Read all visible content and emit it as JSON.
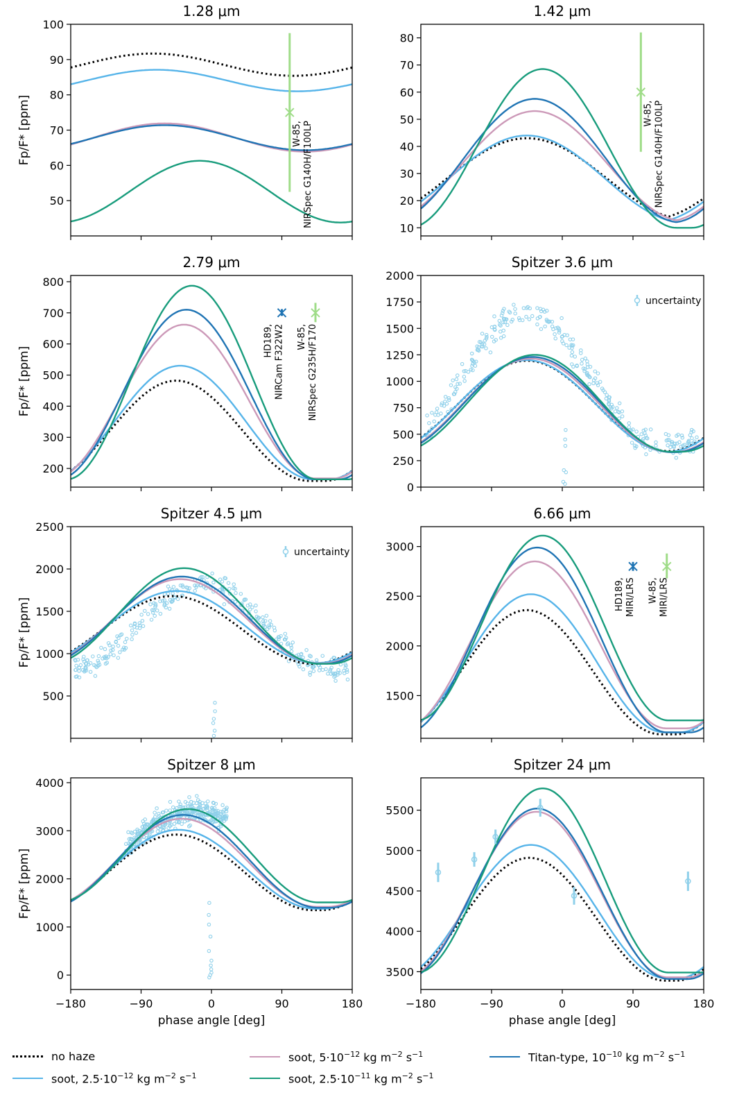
{
  "figure": {
    "xlabel": "phase angle [deg]",
    "ylabel": "Fp/F* [ppm]",
    "xticks": [
      "−180",
      "−90",
      "0",
      "90",
      "180"
    ]
  },
  "colors": {
    "no_haze": "#000000",
    "soot_2_5e_12": "#56b4e9",
    "soot_5e_12": "#cc99b8",
    "soot_2_5e_11": "#189c7c",
    "titan": "#1f74b4",
    "obs_light": "#9fdc88",
    "obs_dark": "#1f74b4",
    "spitzer_points": "#8fd0ea"
  },
  "legend": [
    {
      "key": "no_haze",
      "label": "no haze",
      "style": "dotted"
    },
    {
      "key": "soot_2_5e_12",
      "label_pre": "soot, 2.5·10",
      "exp": "−12",
      "label_post": " kg m",
      "exp2": "−2",
      "label_end": " s",
      "exp3": "−1",
      "style": "solid"
    },
    {
      "key": "soot_5e_12",
      "label_pre": "soot, 5·10",
      "exp": "−12",
      "label_post": " kg m",
      "exp2": "−2",
      "label_end": " s",
      "exp3": "−1",
      "style": "solid"
    },
    {
      "key": "soot_2_5e_11",
      "label_pre": "soot, 2.5·10",
      "exp": "−11",
      "label_post": " kg m",
      "exp2": "−2",
      "label_end": " s",
      "exp3": "−1",
      "style": "solid"
    },
    {
      "key": "titan",
      "label_pre": "Titan-type, 10",
      "exp": "−10",
      "label_post": " kg m",
      "exp2": "−2",
      "label_end": " s",
      "exp3": "−1",
      "style": "solid"
    }
  ],
  "chart_data": [
    {
      "type": "line",
      "title": "1.28 μm",
      "xlim": [
        -180,
        180
      ],
      "ylim": [
        40,
        100
      ],
      "yticks": [
        50,
        60,
        70,
        80,
        90,
        100
      ],
      "series": [
        {
          "key": "no_haze",
          "min": 85.4,
          "max": 91.7,
          "peak": -75,
          "width": 360
        },
        {
          "key": "soot_2_5e_12",
          "min": 81.0,
          "max": 87.1,
          "peak": -70,
          "width": 360
        },
        {
          "key": "soot_5e_12",
          "min": 63.9,
          "max": 71.9,
          "peak": -60,
          "width": 360
        },
        {
          "key": "titan",
          "min": 64.3,
          "max": 71.4,
          "peak": -60,
          "width": 360
        },
        {
          "key": "soot_2_5e_11",
          "min": 43.8,
          "max": 61.3,
          "peak": -15,
          "width": 360
        }
      ],
      "observations": [
        {
          "label": "W-85, NIRSpec G140H/F100LP",
          "x": 100,
          "y": 75,
          "yerr_low": 52.5,
          "yerr_high": 97.5,
          "color": "obs_light",
          "marker": "x"
        }
      ]
    },
    {
      "type": "line",
      "title": "1.42 μm",
      "xlim": [
        -180,
        180
      ],
      "ylim": [
        7,
        85
      ],
      "yticks": [
        10,
        20,
        30,
        40,
        50,
        60,
        70,
        80
      ],
      "series": [
        {
          "key": "no_haze",
          "min": 13.0,
          "max": 43.0,
          "peak": -45,
          "width": 410
        },
        {
          "key": "soot_2_5e_12",
          "min": 12.0,
          "max": 44.0,
          "peak": -45,
          "width": 400
        },
        {
          "key": "soot_5e_12",
          "min": 12.5,
          "max": 53.0,
          "peak": -35,
          "width": 380
        },
        {
          "key": "titan",
          "min": 12.0,
          "max": 57.5,
          "peak": -35,
          "width": 370
        },
        {
          "key": "soot_2_5e_11",
          "min": 10.0,
          "max": 68.5,
          "peak": -25,
          "width": 340
        }
      ],
      "observations": [
        {
          "label": "W-85, NIRSpec G140H/F100LP",
          "x": 100,
          "y": 60,
          "yerr_low": 38,
          "yerr_high": 82,
          "color": "obs_light",
          "marker": "x"
        }
      ]
    },
    {
      "type": "line",
      "title": "2.79 μm",
      "xlim": [
        -180,
        180
      ],
      "ylim": [
        140,
        820
      ],
      "yticks": [
        200,
        300,
        400,
        500,
        600,
        700,
        800
      ],
      "series": [
        {
          "key": "no_haze",
          "min": 160,
          "max": 482,
          "peak": -45,
          "width": 340
        },
        {
          "key": "soot_2_5e_12",
          "min": 165,
          "max": 530,
          "peak": -40,
          "width": 340
        },
        {
          "key": "soot_5e_12",
          "min": 168,
          "max": 662,
          "peak": -35,
          "width": 335
        },
        {
          "key": "titan",
          "min": 165,
          "max": 710,
          "peak": -32,
          "width": 330
        },
        {
          "key": "soot_2_5e_11",
          "min": 165,
          "max": 787,
          "peak": -25,
          "width": 320
        }
      ],
      "observations": [
        {
          "label": "HD189, NIRCam F322W2",
          "x": 90,
          "y": 700,
          "yerr_low": 690,
          "yerr_high": 712,
          "color": "obs_dark",
          "marker": "x"
        },
        {
          "label": "W-85, NIRSpec G235H/F170",
          "x": 133,
          "y": 700,
          "yerr_low": 670,
          "yerr_high": 732,
          "color": "obs_light",
          "marker": "x"
        }
      ]
    },
    {
      "type": "line",
      "title": "Spitzer 3.6 μm",
      "xlim": [
        -180,
        180
      ],
      "ylim": [
        0,
        2000
      ],
      "yticks": [
        0,
        250,
        500,
        750,
        1000,
        1250,
        1500,
        1750,
        2000
      ],
      "legend_text": "uncertainty",
      "series": [
        {
          "key": "no_haze",
          "min": 340,
          "max": 1195,
          "peak": -45,
          "width": 360
        },
        {
          "key": "soot_2_5e_12",
          "min": 335,
          "max": 1200,
          "peak": -45,
          "width": 360
        },
        {
          "key": "soot_5e_12",
          "min": 332,
          "max": 1215,
          "peak": -40,
          "width": 355
        },
        {
          "key": "titan",
          "min": 330,
          "max": 1230,
          "peak": -38,
          "width": 355
        },
        {
          "key": "soot_2_5e_11",
          "min": 335,
          "max": 1250,
          "peak": -35,
          "width": 345
        }
      ],
      "scatter": {
        "model": "hump",
        "base": 420,
        "amp": 1230,
        "center": -45,
        "width": 330,
        "noise": 110,
        "n": 300,
        "dip_x": 3,
        "dip_values": [
          30,
          50,
          140,
          160,
          390,
          450,
          540
        ]
      }
    },
    {
      "type": "line",
      "title": "Spitzer 4.5 μm",
      "xlim": [
        -180,
        180
      ],
      "ylim": [
        0,
        2500
      ],
      "yticks": [
        500,
        1000,
        1500,
        2000,
        2500
      ],
      "legend_text": "uncertainty",
      "series": [
        {
          "key": "no_haze",
          "min": 880,
          "max": 1680,
          "peak": -50,
          "width": 360
        },
        {
          "key": "soot_2_5e_12",
          "min": 890,
          "max": 1740,
          "peak": -45,
          "width": 360
        },
        {
          "key": "soot_5e_12",
          "min": 885,
          "max": 1880,
          "peak": -40,
          "width": 355
        },
        {
          "key": "titan",
          "min": 880,
          "max": 1910,
          "peak": -38,
          "width": 355
        },
        {
          "key": "soot_2_5e_11",
          "min": 880,
          "max": 2010,
          "peak": -35,
          "width": 345
        }
      ],
      "scatter": {
        "model": "hump",
        "base": 820,
        "amp": 1000,
        "center": -10,
        "width": 330,
        "noise": 120,
        "n": 310,
        "dip_x": 3,
        "dip_values": [
          30,
          90,
          180,
          230,
          320,
          420
        ]
      }
    },
    {
      "type": "line",
      "title": "6.66 μm",
      "xlim": [
        -180,
        180
      ],
      "ylim": [
        1070,
        3200
      ],
      "yticks": [
        1500,
        2000,
        2500,
        3000
      ],
      "series": [
        {
          "key": "no_haze",
          "min": 1110,
          "max": 2360,
          "peak": -45,
          "width": 340
        },
        {
          "key": "soot_2_5e_12",
          "min": 1130,
          "max": 2520,
          "peak": -40,
          "width": 340
        },
        {
          "key": "soot_5e_12",
          "min": 1170,
          "max": 2850,
          "peak": -35,
          "width": 335
        },
        {
          "key": "titan",
          "min": 1130,
          "max": 2990,
          "peak": -32,
          "width": 330
        },
        {
          "key": "soot_2_5e_11",
          "min": 1250,
          "max": 3110,
          "peak": -25,
          "width": 320
        }
      ],
      "observations": [
        {
          "label": "HD189, MIRI/LRS",
          "x": 90,
          "y": 2800,
          "yerr_low": 2755,
          "yerr_high": 2845,
          "color": "obs_dark",
          "marker": "x"
        },
        {
          "label": "W-85, MIRI/LRS",
          "x": 133,
          "y": 2800,
          "yerr_low": 2680,
          "yerr_high": 2930,
          "color": "obs_light",
          "marker": "x"
        }
      ]
    },
    {
      "type": "line",
      "title": "Spitzer 8 μm",
      "xlim": [
        -180,
        180
      ],
      "ylim": [
        -300,
        4100
      ],
      "yticks": [
        0,
        1000,
        2000,
        3000,
        4000
      ],
      "series": [
        {
          "key": "no_haze",
          "min": 1350,
          "max": 2920,
          "peak": -45,
          "width": 350
        },
        {
          "key": "soot_2_5e_12",
          "min": 1380,
          "max": 3020,
          "peak": -42,
          "width": 350
        },
        {
          "key": "soot_5e_12",
          "min": 1420,
          "max": 3250,
          "peak": -38,
          "width": 345
        },
        {
          "key": "titan",
          "min": 1400,
          "max": 3330,
          "peak": -36,
          "width": 345
        },
        {
          "key": "soot_2_5e_11",
          "min": 1510,
          "max": 3450,
          "peak": -30,
          "width": 335
        }
      ],
      "scatter": {
        "model": "band",
        "xmin": -110,
        "xmax": 20,
        "base": 2600,
        "amp": 800,
        "center": -20,
        "noise": 220,
        "n": 360,
        "dip_x": -2,
        "dip_values": [
          -50,
          0,
          50,
          120,
          200,
          300,
          500,
          800,
          1050,
          1250,
          1500
        ]
      }
    },
    {
      "type": "line",
      "title": "Spitzer 24 μm",
      "xlim": [
        -180,
        180
      ],
      "ylim": [
        3280,
        5900
      ],
      "yticks": [
        3500,
        4000,
        4500,
        5000,
        5500
      ],
      "series": [
        {
          "key": "no_haze",
          "min": 3390,
          "max": 4910,
          "peak": -42,
          "width": 345
        },
        {
          "key": "soot_2_5e_12",
          "min": 3420,
          "max": 5070,
          "peak": -40,
          "width": 345
        },
        {
          "key": "soot_5e_12",
          "min": 3430,
          "max": 5480,
          "peak": -33,
          "width": 335
        },
        {
          "key": "titan",
          "min": 3410,
          "max": 5520,
          "peak": -32,
          "width": 335
        },
        {
          "key": "soot_2_5e_11",
          "min": 3490,
          "max": 5770,
          "peak": -25,
          "width": 320
        }
      ],
      "points": [
        {
          "x": -158,
          "y": 4730,
          "err": 120
        },
        {
          "x": -112,
          "y": 4890,
          "err": 90
        },
        {
          "x": -85,
          "y": 5170,
          "err": 90
        },
        {
          "x": -28,
          "y": 5530,
          "err": 110
        },
        {
          "x": 15,
          "y": 4440,
          "err": 110
        },
        {
          "x": 160,
          "y": 4620,
          "err": 120
        }
      ]
    }
  ]
}
